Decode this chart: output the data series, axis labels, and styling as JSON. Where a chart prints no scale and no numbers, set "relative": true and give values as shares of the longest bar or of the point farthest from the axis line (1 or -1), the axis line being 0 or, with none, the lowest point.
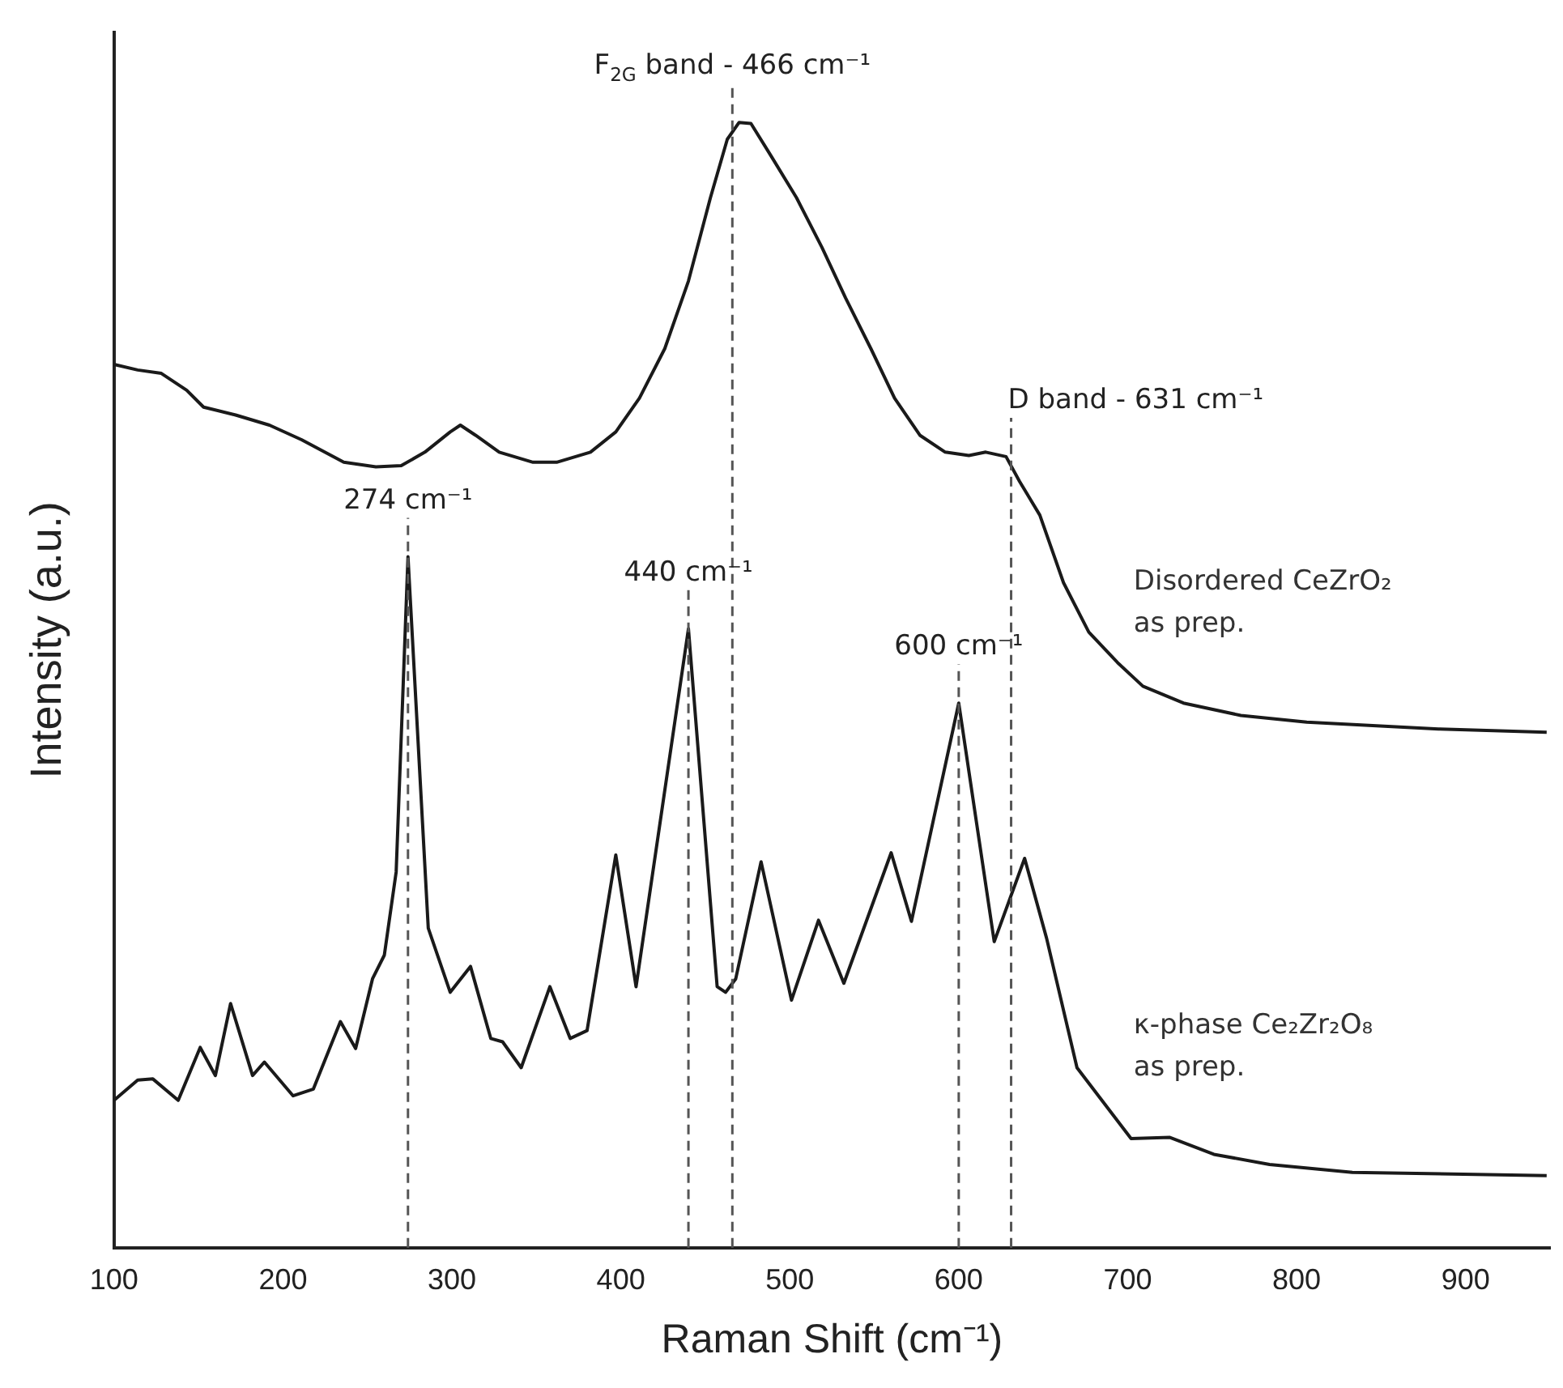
{
  "chart_data": {
    "type": "line",
    "relative": true,
    "xlabel": "Raman Shift (cm⁻¹)",
    "ylabel": "Intensity (a.u.)",
    "xlim": [
      100,
      950
    ],
    "xticks": [
      100,
      200,
      300,
      400,
      500,
      600,
      700,
      800,
      900
    ],
    "tick_labels": "x",
    "grid": false,
    "legend": false,
    "marker": "none",
    "line_style": "solid",
    "series": [
      {
        "name": "Disordered CeZrO₂ as prep.",
        "color": "#1a1a1a",
        "x": [
          100,
          114,
          128,
          143,
          153,
          172,
          192,
          211,
          236,
          255,
          270,
          284,
          299,
          305,
          314,
          328,
          348,
          362,
          382,
          397,
          411,
          426,
          440,
          453,
          463,
          470,
          477,
          489,
          504,
          519,
          533,
          548,
          562,
          577,
          592,
          606,
          616,
          628,
          636,
          648,
          662,
          677,
          694,
          709,
          733,
          767,
          806,
          845,
          884,
          948
        ],
        "values": [
          0.785,
          0.78,
          0.777,
          0.762,
          0.747,
          0.74,
          0.731,
          0.718,
          0.698,
          0.694,
          0.695,
          0.707,
          0.725,
          0.731,
          0.722,
          0.707,
          0.698,
          0.698,
          0.707,
          0.725,
          0.755,
          0.799,
          0.859,
          0.933,
          0.985,
          1,
          0.999,
          0.97,
          0.933,
          0.889,
          0.844,
          0.799,
          0.755,
          0.722,
          0.707,
          0.704,
          0.707,
          0.703,
          0.681,
          0.651,
          0.591,
          0.547,
          0.52,
          0.499,
          0.484,
          0.473,
          0.467,
          0.464,
          0.461,
          0.458
        ]
      },
      {
        "name": "κ-phase Ce₂Zr₂O₈ as prep.",
        "color": "#1a1a1a",
        "x": [
          100,
          114,
          123,
          138,
          151,
          160,
          169,
          182,
          189,
          206,
          218,
          234,
          243,
          253,
          260,
          267,
          274,
          286,
          299,
          311,
          323,
          330,
          341,
          358,
          370,
          380,
          397,
          409,
          440,
          457,
          462,
          468,
          483,
          501,
          517,
          532,
          560,
          572,
          600,
          621,
          639,
          652,
          670,
          702,
          725,
          751,
          784,
          833,
          948
        ],
        "values": [
          0.131,
          0.149,
          0.15,
          0.131,
          0.178,
          0.153,
          0.217,
          0.153,
          0.165,
          0.135,
          0.141,
          0.201,
          0.177,
          0.239,
          0.26,
          0.334,
          0.614,
          0.284,
          0.227,
          0.25,
          0.186,
          0.183,
          0.16,
          0.232,
          0.186,
          0.193,
          0.349,
          0.232,
          0.55,
          0.232,
          0.227,
          0.239,
          0.343,
          0.22,
          0.291,
          0.235,
          0.351,
          0.29,
          0.484,
          0.272,
          0.346,
          0.275,
          0.16,
          0.097,
          0.098,
          0.083,
          0.074,
          0.067,
          0.064
        ]
      }
    ],
    "ref_lines": [
      {
        "axis": "x",
        "value": 274,
        "color": "#555555",
        "line_style": "dashed"
      },
      {
        "axis": "x",
        "value": 440,
        "color": "#555555",
        "line_style": "dashed"
      },
      {
        "axis": "x",
        "value": 466,
        "color": "#555555",
        "line_style": "dashed"
      },
      {
        "axis": "x",
        "value": 600,
        "color": "#555555",
        "line_style": "dashed"
      },
      {
        "axis": "x",
        "value": 631,
        "color": "#555555",
        "line_style": "dashed"
      }
    ],
    "annotations": [
      {
        "text": "274 cm⁻¹",
        "x": 274,
        "y": 0.614
      },
      {
        "text": "440 cm⁻¹",
        "x": 440,
        "y": 0.55
      },
      {
        "text": "F$_{2G}$ band - 466 cm⁻¹",
        "x": 466,
        "y": 1
      },
      {
        "text": "600 cm⁻¹",
        "x": 600,
        "y": 0.484
      },
      {
        "text": "D band - 631 cm⁻¹",
        "x": 631,
        "y": 0.703
      }
    ]
  }
}
